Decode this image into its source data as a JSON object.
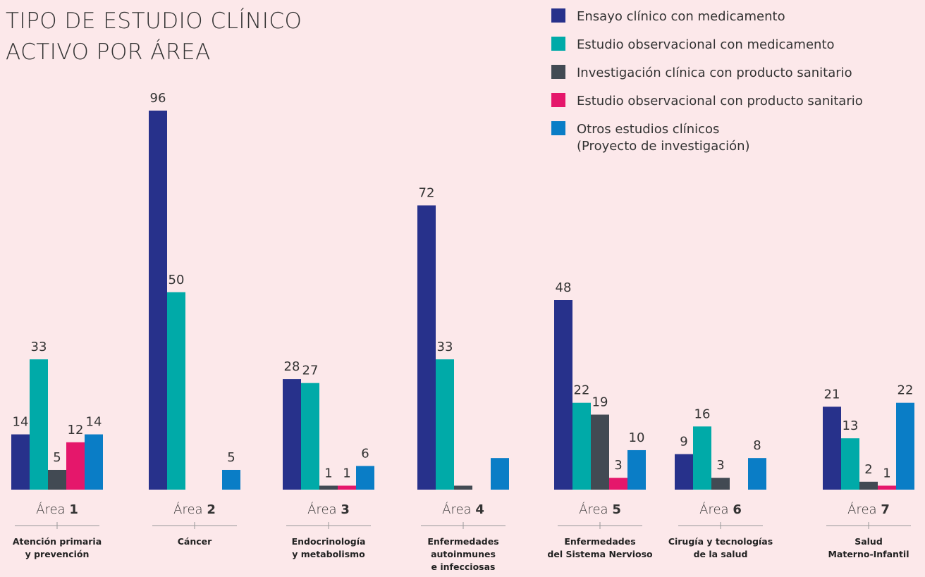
{
  "chart_data": {
    "type": "bar",
    "title": [
      "TIPO DE ESTUDIO CLÍNICO",
      "ACTIVO POR ÁREA"
    ],
    "categories": [
      "Área 1",
      "Área 2",
      "Área 3",
      "Área 4",
      "Área 5",
      "Área 6",
      "Área 7"
    ],
    "descriptions": [
      [
        "Atención primaria",
        "y prevención"
      ],
      [
        "Cáncer"
      ],
      [
        "Endocrinología",
        "y metabolismo"
      ],
      [
        "Enfermedades",
        "autoinmunes",
        "e infecciosas"
      ],
      [
        "Enfermedades",
        "del Sistema Nervioso"
      ],
      [
        "Cirugía y tecnologías",
        "de la salud"
      ],
      [
        "Salud",
        "Materno-Infantil"
      ]
    ],
    "series": [
      {
        "name": "Ensayo clínico con medicamento",
        "color": "#27318b",
        "values": [
          14,
          96,
          28,
          72,
          48,
          9,
          21
        ]
      },
      {
        "name": "Estudio observacional con medicamento",
        "color": "#00aaa8",
        "values": [
          33,
          50,
          27,
          33,
          22,
          16,
          13
        ]
      },
      {
        "name": "Investigación clínica con producto sanitario",
        "color": "#424a53",
        "values": [
          5,
          null,
          1,
          1,
          19,
          3,
          2
        ],
        "value_labels": [
          "5",
          null,
          "1",
          null,
          "19",
          "3",
          "2"
        ]
      },
      {
        "name": "Estudio observacional con producto sanitario",
        "color": "#e5176b",
        "values": [
          12,
          null,
          1,
          null,
          3,
          null,
          1
        ]
      },
      {
        "name": "Otros estudios clínicos\n(Proyecto de investigación)",
        "color": "#0a7dc6",
        "values": [
          14,
          5,
          6,
          8,
          10,
          8,
          22
        ],
        "value_labels": [
          "14",
          "5",
          "6",
          null,
          "10",
          "8",
          "22"
        ]
      }
    ],
    "legend": "top-right"
  }
}
